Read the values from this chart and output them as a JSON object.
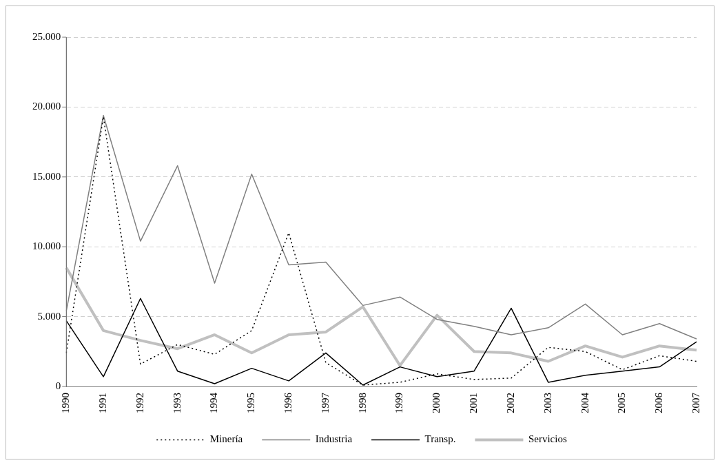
{
  "chart_data": {
    "type": "line",
    "categories": [
      "1990",
      "1991",
      "1992",
      "1993",
      "1994",
      "1995",
      "1996",
      "1997",
      "1998",
      "1999",
      "2000",
      "2001",
      "2002",
      "2003",
      "2004",
      "2005",
      "2006",
      "2007"
    ],
    "series": [
      {
        "name": "Minería",
        "color": "#000000",
        "line_style": "dotted",
        "values": [
          2400,
          19300,
          1600,
          3000,
          2300,
          4000,
          11000,
          1700,
          100,
          300,
          900,
          500,
          600,
          2800,
          2500,
          1200,
          2200,
          1800
        ]
      },
      {
        "name": "Industria",
        "color": "#808080",
        "line_style": "solid",
        "values": [
          5400,
          19400,
          10400,
          15800,
          7400,
          15200,
          8700,
          8900,
          5800,
          6400,
          4800,
          4300,
          3700,
          4200,
          5900,
          3700,
          4500,
          3400
        ]
      },
      {
        "name": "Transp.",
        "color": "#000000",
        "line_style": "solid",
        "values": [
          4700,
          700,
          6300,
          1100,
          200,
          1300,
          400,
          2400,
          100,
          1400,
          700,
          1100,
          5600,
          300,
          800,
          1100,
          1400,
          3200
        ]
      },
      {
        "name": "Servicios",
        "color": "#c0c0c0",
        "line_style": "solid",
        "values": [
          8500,
          4000,
          3300,
          2700,
          3700,
          2400,
          3700,
          3900,
          5700,
          1500,
          5100,
          2500,
          2400,
          1800,
          2900,
          2100,
          2900,
          2600
        ]
      }
    ],
    "ylim": [
      0,
      25000
    ],
    "yticks": [
      {
        "value": 0,
        "label": "0"
      },
      {
        "value": 5000,
        "label": "5.000"
      },
      {
        "value": 10000,
        "label": "10.000"
      },
      {
        "value": 15000,
        "label": "15.000"
      },
      {
        "value": 20000,
        "label": "20.000"
      },
      {
        "value": 25000,
        "label": "25.000"
      }
    ],
    "grid": "y",
    "legend": "bottom",
    "marker": "none"
  }
}
